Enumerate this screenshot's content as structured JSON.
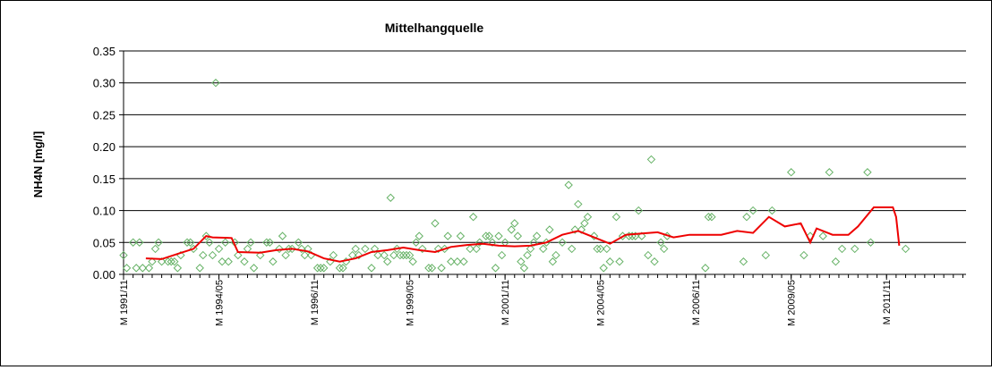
{
  "chart_data": {
    "type": "line",
    "title": "Mittelhangquelle",
    "xlabel": "",
    "ylabel": "NH4N [mg/l]",
    "ylim": [
      0,
      0.35
    ],
    "y_ticks": [
      "0.00",
      "0.05",
      "0.10",
      "0.15",
      "0.20",
      "0.25",
      "0.30",
      "0.35"
    ],
    "y_tick_values": [
      0,
      0.05,
      0.1,
      0.15,
      0.2,
      0.25,
      0.3,
      0.35
    ],
    "x_tick_labels": [
      {
        "date": "1991-11",
        "label": "M 1991/11"
      },
      {
        "date": "1994-05",
        "label": "M 1994/05"
      },
      {
        "date": "1996-11",
        "label": "M 1996/11"
      },
      {
        "date": "1999-05",
        "label": "M 1999/05"
      },
      {
        "date": "2001-11",
        "label": "M 2001/11"
      },
      {
        "date": "2004-05",
        "label": "M 2004/05"
      },
      {
        "date": "2006-11",
        "label": "M 2006/11"
      },
      {
        "date": "2009-05",
        "label": "M 2009/05"
      },
      {
        "date": "2011-11",
        "label": "M 2011/11"
      }
    ],
    "x_range": [
      "1991-11",
      "2013-12"
    ],
    "grid": "horizontal",
    "legend": "none",
    "series": [
      {
        "kind": "scatter",
        "marker": "diamond",
        "color": "#66b266",
        "points": [
          [
            "1991-11",
            0.03
          ],
          [
            "1991-12",
            0.01
          ],
          [
            "1992-02",
            0.05
          ],
          [
            "1992-03",
            0.01
          ],
          [
            "1992-04",
            0.05
          ],
          [
            "1992-05",
            0.01
          ],
          [
            "1992-07",
            0.01
          ],
          [
            "1992-08",
            0.02
          ],
          [
            "1992-09",
            0.04
          ],
          [
            "1992-10",
            0.05
          ],
          [
            "1992-11",
            0.02
          ],
          [
            "1993-01",
            0.02
          ],
          [
            "1993-02",
            0.02
          ],
          [
            "1993-03",
            0.02
          ],
          [
            "1993-04",
            0.01
          ],
          [
            "1993-05",
            0.03
          ],
          [
            "1993-07",
            0.05
          ],
          [
            "1993-08",
            0.05
          ],
          [
            "1993-09",
            0.04
          ],
          [
            "1993-11",
            0.01
          ],
          [
            "1993-12",
            0.03
          ],
          [
            "1994-01",
            0.06
          ],
          [
            "1994-02",
            0.05
          ],
          [
            "1994-03",
            0.03
          ],
          [
            "1994-04",
            0.3
          ],
          [
            "1994-05",
            0.04
          ],
          [
            "1994-06",
            0.02
          ],
          [
            "1994-07",
            0.05
          ],
          [
            "1994-08",
            0.02
          ],
          [
            "1994-10",
            0.05
          ],
          [
            "1994-11",
            0.03
          ],
          [
            "1995-01",
            0.02
          ],
          [
            "1995-02",
            0.04
          ],
          [
            "1995-03",
            0.05
          ],
          [
            "1995-04",
            0.01
          ],
          [
            "1995-06",
            0.03
          ],
          [
            "1995-08",
            0.05
          ],
          [
            "1995-09",
            0.05
          ],
          [
            "1995-10",
            0.02
          ],
          [
            "1995-12",
            0.04
          ],
          [
            "1996-01",
            0.06
          ],
          [
            "1996-02",
            0.03
          ],
          [
            "1996-03",
            0.04
          ],
          [
            "1996-04",
            0.04
          ],
          [
            "1996-06",
            0.05
          ],
          [
            "1996-07",
            0.04
          ],
          [
            "1996-08",
            0.03
          ],
          [
            "1996-09",
            0.04
          ],
          [
            "1996-10",
            0.03
          ],
          [
            "1996-12",
            0.01
          ],
          [
            "1997-01",
            0.01
          ],
          [
            "1997-02",
            0.01
          ],
          [
            "1997-04",
            0.02
          ],
          [
            "1997-05",
            0.03
          ],
          [
            "1997-07",
            0.01
          ],
          [
            "1997-08",
            0.01
          ],
          [
            "1997-09",
            0.02
          ],
          [
            "1997-11",
            0.03
          ],
          [
            "1997-12",
            0.04
          ],
          [
            "1998-01",
            0.03
          ],
          [
            "1998-03",
            0.04
          ],
          [
            "1998-05",
            0.01
          ],
          [
            "1998-06",
            0.04
          ],
          [
            "1998-07",
            0.03
          ],
          [
            "1998-09",
            0.03
          ],
          [
            "1998-10",
            0.02
          ],
          [
            "1998-11",
            0.12
          ],
          [
            "1998-12",
            0.03
          ],
          [
            "1999-01",
            0.04
          ],
          [
            "1999-02",
            0.03
          ],
          [
            "1999-03",
            0.03
          ],
          [
            "1999-04",
            0.03
          ],
          [
            "1999-05",
            0.03
          ],
          [
            "1999-06",
            0.02
          ],
          [
            "1999-07",
            0.05
          ],
          [
            "1999-08",
            0.06
          ],
          [
            "1999-09",
            0.04
          ],
          [
            "1999-11",
            0.01
          ],
          [
            "1999-12",
            0.01
          ],
          [
            "2000-01",
            0.08
          ],
          [
            "2000-02",
            0.04
          ],
          [
            "2000-03",
            0.01
          ],
          [
            "2000-04",
            0.04
          ],
          [
            "2000-05",
            0.06
          ],
          [
            "2000-06",
            0.02
          ],
          [
            "2000-08",
            0.02
          ],
          [
            "2000-09",
            0.06
          ],
          [
            "2000-10",
            0.02
          ],
          [
            "2000-12",
            0.04
          ],
          [
            "2001-01",
            0.09
          ],
          [
            "2001-02",
            0.04
          ],
          [
            "2001-03",
            0.05
          ],
          [
            "2001-05",
            0.06
          ],
          [
            "2001-06",
            0.06
          ],
          [
            "2001-07",
            0.05
          ],
          [
            "2001-08",
            0.01
          ],
          [
            "2001-09",
            0.06
          ],
          [
            "2001-10",
            0.03
          ],
          [
            "2001-11",
            0.05
          ],
          [
            "2002-01",
            0.07
          ],
          [
            "2002-02",
            0.08
          ],
          [
            "2002-03",
            0.06
          ],
          [
            "2002-04",
            0.02
          ],
          [
            "2002-05",
            0.01
          ],
          [
            "2002-06",
            0.03
          ],
          [
            "2002-07",
            0.04
          ],
          [
            "2002-08",
            0.05
          ],
          [
            "2002-09",
            0.06
          ],
          [
            "2002-11",
            0.04
          ],
          [
            "2002-12",
            0.05
          ],
          [
            "2003-01",
            0.07
          ],
          [
            "2003-02",
            0.02
          ],
          [
            "2003-03",
            0.03
          ],
          [
            "2003-05",
            0.05
          ],
          [
            "2003-07",
            0.14
          ],
          [
            "2003-08",
            0.04
          ],
          [
            "2003-09",
            0.07
          ],
          [
            "2003-10",
            0.11
          ],
          [
            "2003-11",
            0.07
          ],
          [
            "2003-12",
            0.08
          ],
          [
            "2004-01",
            0.09
          ],
          [
            "2004-03",
            0.06
          ],
          [
            "2004-04",
            0.04
          ],
          [
            "2004-05",
            0.04
          ],
          [
            "2004-06",
            0.01
          ],
          [
            "2004-07",
            0.04
          ],
          [
            "2004-08",
            0.02
          ],
          [
            "2004-10",
            0.09
          ],
          [
            "2004-11",
            0.02
          ],
          [
            "2004-12",
            0.06
          ],
          [
            "2005-02",
            0.06
          ],
          [
            "2005-03",
            0.06
          ],
          [
            "2005-04",
            0.06
          ],
          [
            "2005-05",
            0.1
          ],
          [
            "2005-06",
            0.06
          ],
          [
            "2005-08",
            0.03
          ],
          [
            "2005-09",
            0.18
          ],
          [
            "2005-10",
            0.02
          ],
          [
            "2005-12",
            0.05
          ],
          [
            "2006-01",
            0.04
          ],
          [
            "2006-02",
            0.06
          ],
          [
            "2007-02",
            0.01
          ],
          [
            "2007-03",
            0.09
          ],
          [
            "2007-04",
            0.09
          ],
          [
            "2008-02",
            0.02
          ],
          [
            "2008-03",
            0.09
          ],
          [
            "2008-05",
            0.1
          ],
          [
            "2008-09",
            0.03
          ],
          [
            "2008-11",
            0.1
          ],
          [
            "2009-05",
            0.16
          ],
          [
            "2009-09",
            0.03
          ],
          [
            "2009-11",
            0.06
          ],
          [
            "2010-03",
            0.06
          ],
          [
            "2010-05",
            0.16
          ],
          [
            "2010-07",
            0.02
          ],
          [
            "2010-09",
            0.04
          ],
          [
            "2011-01",
            0.04
          ],
          [
            "2011-05",
            0.16
          ],
          [
            "2011-06",
            0.05
          ],
          [
            "2012-05",
            0.04
          ]
        ]
      },
      {
        "kind": "line",
        "color": "#ee0000",
        "points": [
          [
            "1992-06",
            0.025
          ],
          [
            "1992-11",
            0.024
          ],
          [
            "1993-04",
            0.032
          ],
          [
            "1993-09",
            0.04
          ],
          [
            "1994-01",
            0.06
          ],
          [
            "1994-03",
            0.058
          ],
          [
            "1994-09",
            0.057
          ],
          [
            "1994-11",
            0.035
          ],
          [
            "1995-06",
            0.034
          ],
          [
            "1995-11",
            0.038
          ],
          [
            "1996-04",
            0.04
          ],
          [
            "1996-09",
            0.036
          ],
          [
            "1997-02",
            0.025
          ],
          [
            "1997-07",
            0.02
          ],
          [
            "1997-12",
            0.025
          ],
          [
            "1998-05",
            0.035
          ],
          [
            "1998-10",
            0.038
          ],
          [
            "1999-03",
            0.042
          ],
          [
            "1999-08",
            0.038
          ],
          [
            "2000-01",
            0.035
          ],
          [
            "2000-06",
            0.043
          ],
          [
            "2000-11",
            0.046
          ],
          [
            "2001-04",
            0.048
          ],
          [
            "2001-09",
            0.045
          ],
          [
            "2002-02",
            0.044
          ],
          [
            "2002-07",
            0.045
          ],
          [
            "2002-12",
            0.05
          ],
          [
            "2003-05",
            0.062
          ],
          [
            "2003-10",
            0.068
          ],
          [
            "2004-03",
            0.058
          ],
          [
            "2004-08",
            0.048
          ],
          [
            "2005-01",
            0.062
          ],
          [
            "2005-06",
            0.064
          ],
          [
            "2005-11",
            0.066
          ],
          [
            "2006-04",
            0.058
          ],
          [
            "2006-09",
            0.062
          ],
          [
            "2007-02",
            0.062
          ],
          [
            "2007-07",
            0.062
          ],
          [
            "2007-12",
            0.068
          ],
          [
            "2008-05",
            0.065
          ],
          [
            "2008-10",
            0.09
          ],
          [
            "2009-03",
            0.075
          ],
          [
            "2009-08",
            0.08
          ],
          [
            "2009-11",
            0.05
          ],
          [
            "2010-01",
            0.072
          ],
          [
            "2010-06",
            0.062
          ],
          [
            "2010-11",
            0.062
          ],
          [
            "2011-02",
            0.075
          ],
          [
            "2011-07",
            0.105
          ],
          [
            "2012-01",
            0.105
          ],
          [
            "2012-02",
            0.09
          ],
          [
            "2012-03",
            0.045
          ]
        ]
      }
    ]
  }
}
